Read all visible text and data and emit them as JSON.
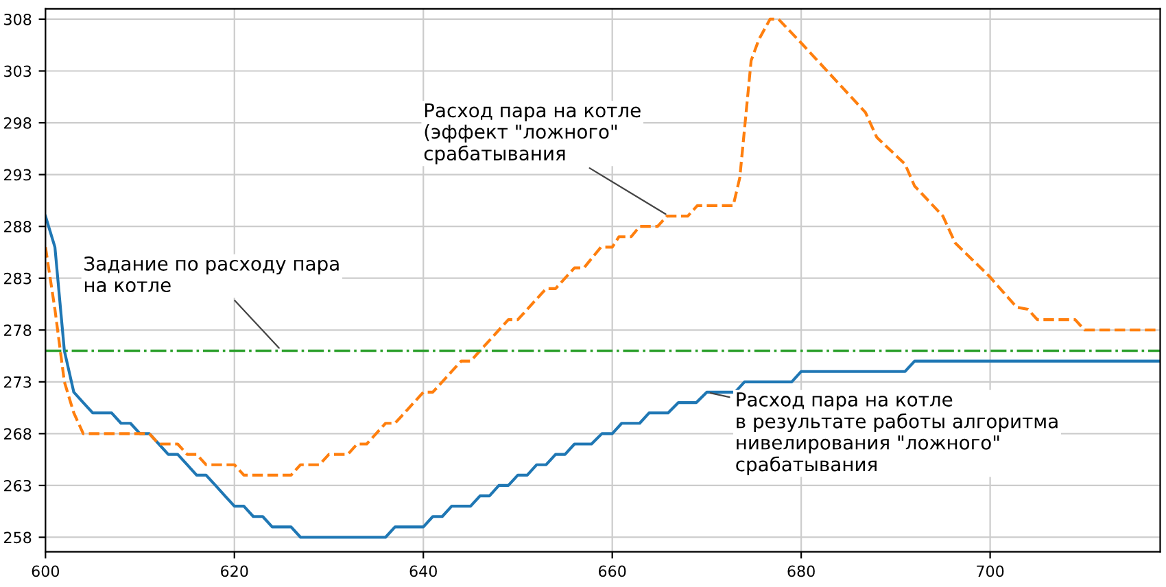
{
  "chart_data": {
    "type": "line",
    "xlim": [
      600,
      718
    ],
    "ylim": [
      256.6,
      309
    ],
    "xticks": [
      600,
      620,
      640,
      660,
      680,
      700
    ],
    "yticks": [
      258,
      263,
      268,
      273,
      278,
      283,
      288,
      293,
      298,
      303,
      308
    ],
    "grid": true,
    "legend": false,
    "marker": "none",
    "series": [
      {
        "color": "#1f77b4",
        "line_style": "solid",
        "x": [
          600,
          601,
          602,
          603,
          604,
          605,
          607,
          608,
          609,
          610,
          611,
          612,
          613,
          614,
          615,
          616,
          617,
          618,
          619,
          620,
          621,
          622,
          623,
          624,
          626,
          627,
          636,
          637,
          640,
          641,
          642,
          643,
          645,
          646,
          647,
          648,
          649,
          650,
          651,
          652,
          653,
          654,
          655,
          656,
          657.8,
          658.9,
          660,
          661,
          662.9,
          663.9,
          665.9,
          667,
          668.9,
          670,
          673,
          674,
          679,
          680,
          691,
          692,
          718
        ],
        "values": [
          289,
          286,
          276,
          272,
          271,
          270,
          270,
          269,
          269,
          268,
          268,
          267,
          266,
          266,
          265,
          264,
          264,
          263,
          262,
          261,
          261,
          260,
          260,
          259,
          259,
          258,
          258,
          259,
          259,
          260,
          260,
          261,
          261,
          262,
          262,
          263,
          263,
          264,
          264,
          265,
          265,
          266,
          266,
          267,
          267,
          268,
          268,
          269,
          269,
          270,
          270,
          271,
          271,
          272,
          272,
          273,
          273,
          274,
          274,
          275,
          275
        ]
      },
      {
        "color": "#ff7f0e",
        "line_style": "dashed",
        "x": [
          600,
          601,
          602,
          603,
          604,
          611,
          612,
          614,
          615,
          616,
          617,
          620,
          621,
          626,
          627,
          629,
          630,
          632,
          633,
          634,
          635,
          636,
          637,
          638,
          639,
          640,
          641,
          642,
          643,
          644,
          645,
          646,
          647,
          648,
          649,
          650,
          651,
          652,
          653,
          654,
          655,
          656,
          657,
          658.8,
          660,
          660.7,
          662,
          662.9,
          664.8,
          665.8,
          668,
          669,
          672.8,
          673.5,
          674.7,
          675.5,
          676.7,
          677.6,
          680,
          686.8,
          688,
          691,
          692,
          695,
          696.3,
          699.9,
          702.8,
          704,
          705,
          709,
          710,
          718
        ],
        "values": [
          286,
          280,
          273,
          270,
          268,
          268,
          267,
          267,
          266,
          266,
          265,
          265,
          264,
          264,
          265,
          265,
          266,
          266,
          267,
          267,
          268,
          269,
          269,
          270,
          271,
          272,
          272,
          273,
          274,
          275,
          275,
          276,
          277,
          278,
          279,
          279,
          280,
          281,
          282,
          282,
          283,
          284,
          284,
          286,
          286,
          287,
          287,
          288,
          288,
          289,
          289,
          290,
          290,
          292.7,
          304,
          306,
          308,
          308,
          305.7,
          299,
          296.6,
          294,
          291.9,
          289,
          286.4,
          283.2,
          280.2,
          280,
          279,
          279,
          278,
          278
        ]
      }
    ],
    "ref_lines": [
      {
        "axis": "y",
        "value": 276,
        "color": "#2ca02c",
        "line_style": "dashdot"
      }
    ],
    "annotations": [
      {
        "text": "Задание по расходу пара\nна котле",
        "x": 625,
        "y": 276
      },
      {
        "text": "Расход пара на котле\n(эффект \"ложного\"\nсрабатывания",
        "x": 666,
        "y": 289
      },
      {
        "text": "Расход пара на котле\nв результате работы алгоритма\nнивелирования \"ложного\"\nсрабатывания",
        "x": 670,
        "y": 272
      }
    ]
  }
}
